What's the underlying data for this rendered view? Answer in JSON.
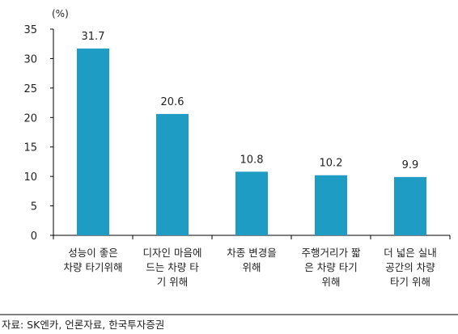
{
  "chart_data": {
    "type": "bar",
    "unit_label": "(%)",
    "categories": [
      [
        "성능이 좋은",
        "차량 타기위해"
      ],
      [
        "디자인 마음에",
        "드는 차량 타",
        "기 위해"
      ],
      [
        "차종 변경을",
        "위해"
      ],
      [
        "주행거리가 짧",
        "은 차량 타기",
        "위해"
      ],
      [
        "더 넓은 실내",
        "공간의 차량",
        "타기 위해"
      ]
    ],
    "values": [
      31.7,
      20.6,
      10.8,
      10.2,
      9.9
    ],
    "value_labels": [
      "31.7",
      "20.6",
      "10.8",
      "10.2",
      "9.9"
    ],
    "ylim": [
      0,
      35
    ],
    "yticks": [
      0,
      5,
      10,
      15,
      20,
      25,
      30,
      35
    ],
    "bar_color": "#1F9CC4",
    "axis_color": "#000000",
    "grid": false,
    "legend": "none",
    "source": "자료: SK엔카, 언론자료, 한국투자증권"
  }
}
